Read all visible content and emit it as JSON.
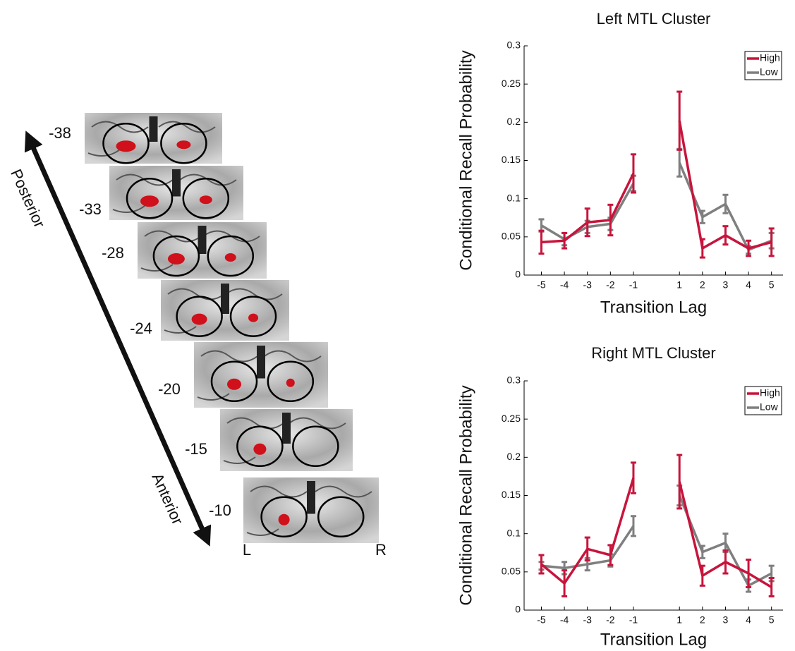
{
  "brain_panel": {
    "slices": [
      "-38",
      "-33",
      "-28",
      "-24",
      "-20",
      "-15",
      "-10"
    ],
    "posterior": "Posterior",
    "anterior": "Anterior",
    "left": "L",
    "right": "R"
  },
  "chart_data": [
    {
      "type": "line",
      "title": "Left MTL Cluster",
      "xlabel": "Transition Lag",
      "ylabel": "Conditional Recall Probability",
      "x": [
        -5,
        -4,
        -3,
        -2,
        -1,
        1,
        2,
        3,
        4,
        5
      ],
      "xlim": [
        -5.75,
        5.5
      ],
      "xticks": [
        -5,
        -4,
        -3,
        -2,
        -1,
        1,
        2,
        3,
        4,
        5
      ],
      "ylim": [
        0,
        0.3
      ],
      "yticks": [
        0,
        0.05,
        0.1,
        0.15,
        0.2,
        0.25,
        0.3
      ],
      "legend": "upper right",
      "series": [
        {
          "name": "Low",
          "color": "#7f7f7f",
          "values": [
            0.065,
            0.047,
            0.063,
            0.067,
            0.12,
            0.147,
            0.076,
            0.093,
            0.033,
            0.045
          ],
          "errors": [
            0.008,
            0.008,
            0.008,
            0.008,
            0.01,
            0.018,
            0.008,
            0.012,
            0.005,
            0.01
          ]
        },
        {
          "name": "High",
          "color": "#c8143c",
          "values": [
            0.043,
            0.045,
            0.069,
            0.072,
            0.133,
            0.202,
            0.035,
            0.052,
            0.035,
            0.043
          ],
          "errors": [
            0.015,
            0.01,
            0.018,
            0.02,
            0.025,
            0.038,
            0.012,
            0.012,
            0.01,
            0.018
          ]
        }
      ]
    },
    {
      "type": "line",
      "title": "Right MTL Cluster",
      "xlabel": "Transition Lag",
      "ylabel": "Conditional Recall Probability",
      "x": [
        -5,
        -4,
        -3,
        -2,
        -1,
        1,
        2,
        3,
        4,
        5
      ],
      "xlim": [
        -5.75,
        5.5
      ],
      "xticks": [
        -5,
        -4,
        -3,
        -2,
        -1,
        1,
        2,
        3,
        4,
        5
      ],
      "ylim": [
        0,
        0.3
      ],
      "yticks": [
        0,
        0.05,
        0.1,
        0.15,
        0.2,
        0.25,
        0.3
      ],
      "legend": "upper right",
      "series": [
        {
          "name": "Low",
          "color": "#7f7f7f",
          "values": [
            0.058,
            0.055,
            0.06,
            0.065,
            0.11,
            0.15,
            0.076,
            0.088,
            0.032,
            0.048
          ],
          "errors": [
            0.005,
            0.008,
            0.008,
            0.008,
            0.013,
            0.013,
            0.008,
            0.012,
            0.008,
            0.01
          ]
        },
        {
          "name": "High",
          "color": "#c8143c",
          "values": [
            0.06,
            0.035,
            0.08,
            0.072,
            0.173,
            0.168,
            0.045,
            0.063,
            0.048,
            0.03
          ],
          "errors": [
            0.012,
            0.017,
            0.015,
            0.013,
            0.02,
            0.035,
            0.013,
            0.015,
            0.018,
            0.012
          ]
        }
      ]
    }
  ]
}
